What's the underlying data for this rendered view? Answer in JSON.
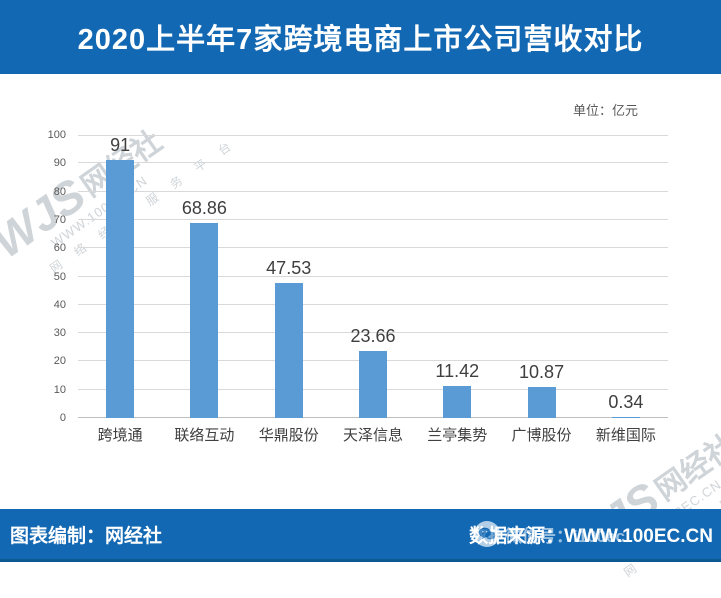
{
  "header": {
    "title": "2020上半年7家跨境电商上市公司营收对比"
  },
  "chart": {
    "unit_label": "单位：亿元"
  },
  "chart_data": {
    "type": "bar",
    "title": "2020上半年7家跨境电商上市公司营收对比",
    "unit": "亿元",
    "categories": [
      "跨境通",
      "联络互动",
      "华鼎股份",
      "天泽信息",
      "兰亭集势",
      "广博股份",
      "新维国际"
    ],
    "values": [
      91,
      68.86,
      47.53,
      23.66,
      11.42,
      10.87,
      0.34
    ],
    "value_labels": [
      "91",
      "68.86",
      "47.53",
      "23.66",
      "11.42",
      "10.87",
      "0.34"
    ],
    "xlabel": "",
    "ylabel": "",
    "ylim": [
      0,
      100
    ],
    "ytick_step": 10,
    "grid": true,
    "legend": "none",
    "bar_color": "#5b9bd5"
  },
  "watermark": {
    "wjs": "WJS",
    "name": "网经社",
    "url": "WWW.100EC.CN",
    "tagline": "网 络 经 济 服 务 平 台"
  },
  "footer": {
    "left": "图表编制：网经社",
    "right": "数据来源：WWW.100EC.CN",
    "wechat_label": "微信号：i100ec"
  },
  "colors": {
    "banner_bg": "#1268b3",
    "bar": "#5b9bd5",
    "grid": "#d9d9d9",
    "axis_text": "#595959",
    "value_text": "#3f3f3f"
  }
}
